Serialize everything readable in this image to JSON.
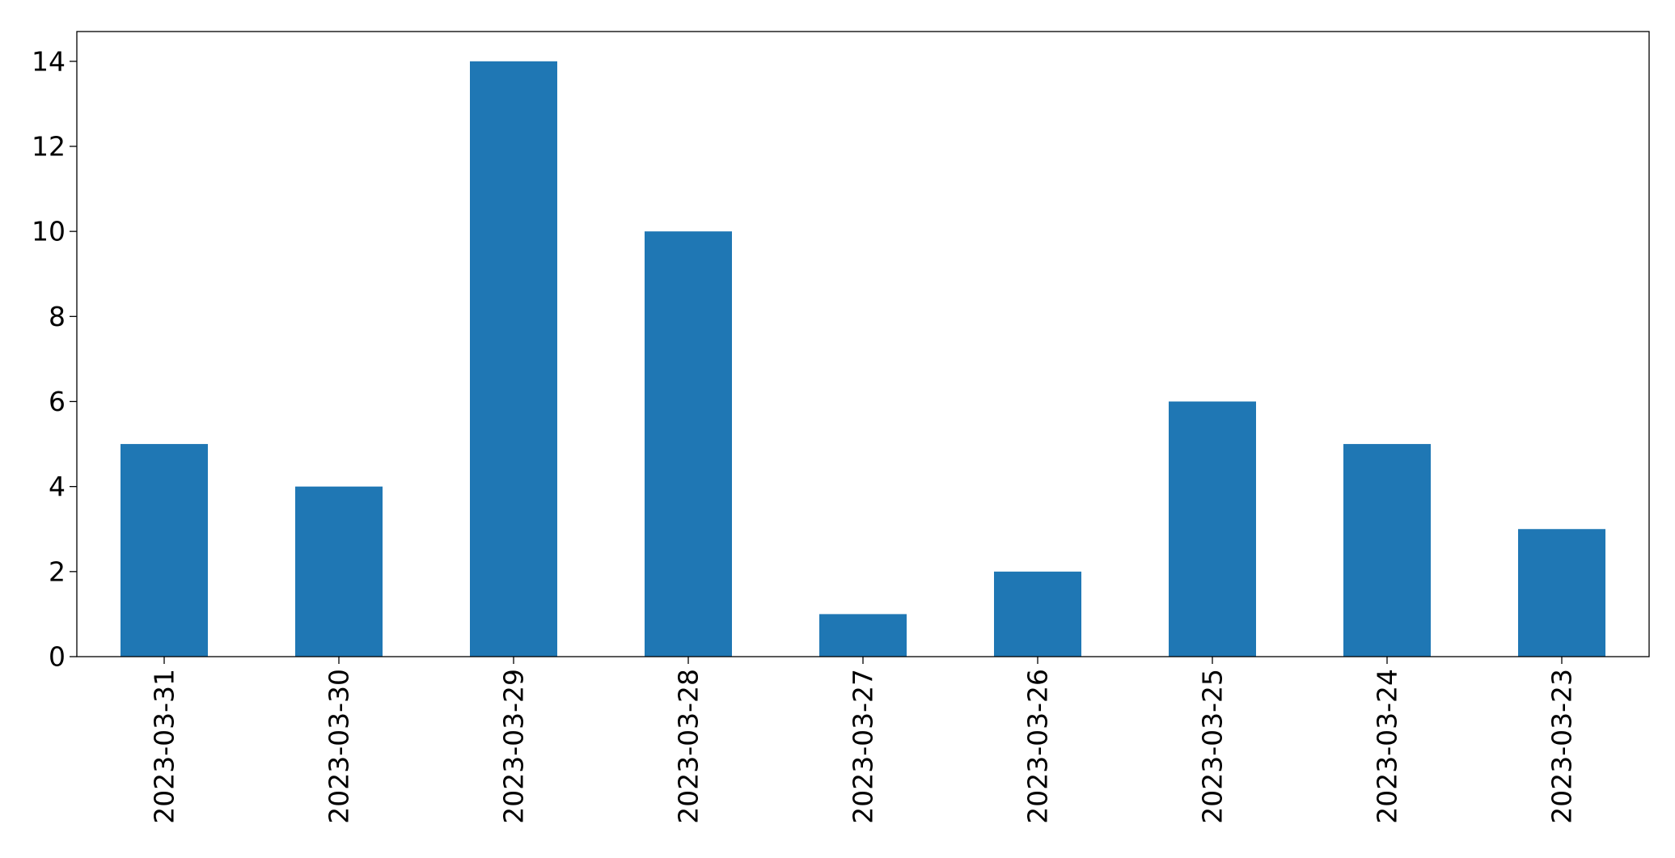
{
  "chart_data": {
    "type": "bar",
    "title": "",
    "xlabel": "",
    "ylabel": "",
    "categories": [
      "2023-03-31",
      "2023-03-30",
      "2023-03-29",
      "2023-03-28",
      "2023-03-27",
      "2023-03-26",
      "2023-03-25",
      "2023-03-24",
      "2023-03-23"
    ],
    "values": [
      5,
      4,
      14,
      10,
      1,
      2,
      6,
      5,
      3
    ],
    "ylim": [
      0,
      14.7
    ],
    "yticks": [
      0,
      2,
      4,
      6,
      8,
      10,
      12,
      14
    ],
    "bar_color": "#1f77b4",
    "grid": false,
    "legend": "none"
  }
}
